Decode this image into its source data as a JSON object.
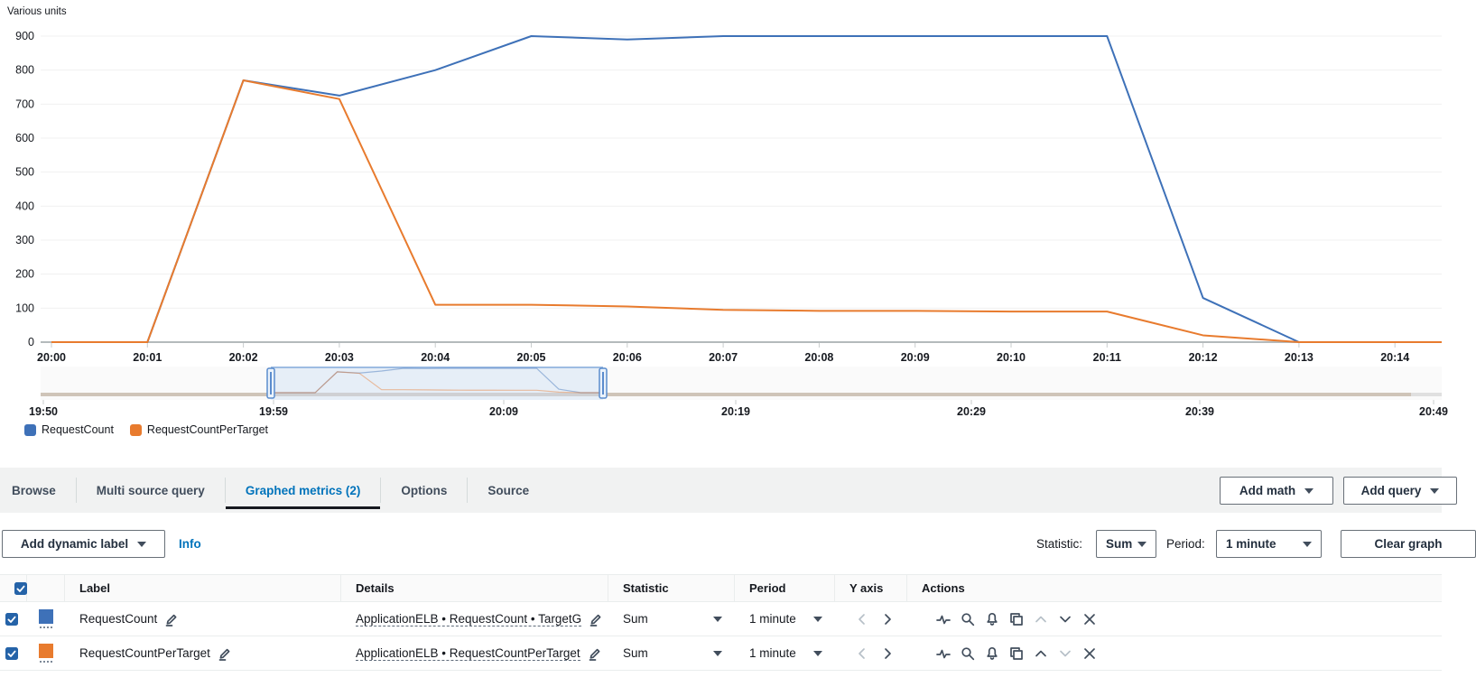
{
  "chart": {
    "unit_label": "Various units"
  },
  "chart_data": {
    "type": "line",
    "title": "",
    "ylabel": "Various units",
    "x": [
      "20:00",
      "20:01",
      "20:02",
      "20:03",
      "20:04",
      "20:05",
      "20:06",
      "20:07",
      "20:08",
      "20:09",
      "20:10",
      "20:11",
      "20:12",
      "20:13",
      "20:14"
    ],
    "ylim": [
      0,
      900
    ],
    "y_ticks": [
      0,
      100,
      200,
      300,
      400,
      500,
      600,
      700,
      800,
      900
    ],
    "grid": true,
    "legend_position": "bottom-left",
    "series": [
      {
        "name": "RequestCount",
        "color": "#3e71b8",
        "values": [
          0,
          0,
          770,
          725,
          800,
          900,
          890,
          900,
          900,
          900,
          900,
          900,
          130,
          0,
          0
        ]
      },
      {
        "name": "RequestCountPerTarget",
        "color": "#e87b2e",
        "values": [
          0,
          0,
          770,
          715,
          110,
          110,
          105,
          95,
          92,
          92,
          90,
          90,
          20,
          0,
          0
        ]
      }
    ],
    "timeline": {
      "ticks": [
        "19:50",
        "19:59",
        "20:09",
        "20:19",
        "20:29",
        "20:39",
        "20:49"
      ],
      "selection_start": "19:59",
      "selection_end": "20:14"
    }
  },
  "legend": {
    "items": [
      {
        "label": "RequestCount",
        "color": "#3e71b8"
      },
      {
        "label": "RequestCountPerTarget",
        "color": "#e87b2e"
      }
    ]
  },
  "tabs": {
    "items": [
      "Browse",
      "Multi source query",
      "Graphed metrics (2)",
      "Options",
      "Source"
    ],
    "active": "Graphed metrics (2)",
    "add_math_label": "Add math",
    "add_query_label": "Add query"
  },
  "toolbar": {
    "add_dynamic_label": "Add dynamic label",
    "info_label": "Info",
    "statistic_label": "Statistic:",
    "statistic_value": "Sum",
    "period_label": "Period:",
    "period_value": "1 minute",
    "clear_graph_label": "Clear graph"
  },
  "table": {
    "columns": [
      "Label",
      "Details",
      "Statistic",
      "Period",
      "Y axis",
      "Actions"
    ],
    "rows": [
      {
        "checked": true,
        "color": "#3e71b8",
        "label": "RequestCount",
        "details": "ApplicationELB • RequestCount • TargetG",
        "statistic": "Sum",
        "period": "1 minute"
      },
      {
        "checked": true,
        "color": "#e87b2e",
        "label": "RequestCountPerTarget",
        "details": "ApplicationELB • RequestCountPerTarget",
        "statistic": "Sum",
        "period": "1 minute"
      }
    ]
  },
  "colors": {
    "accent_blue": "#0073bb",
    "series_blue": "#3e71b8",
    "series_orange": "#e87b2e",
    "checkbox_blue": "#2563a8"
  }
}
